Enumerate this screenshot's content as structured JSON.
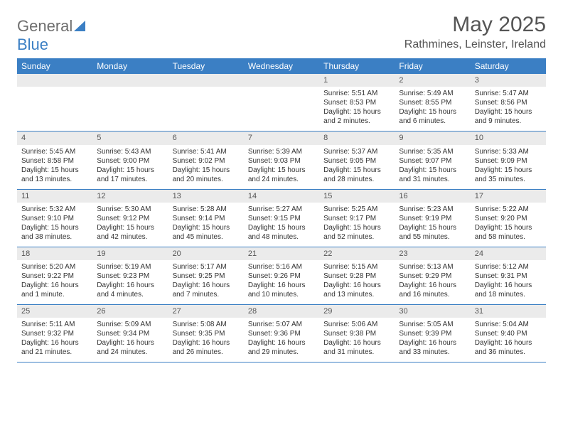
{
  "logo": {
    "part1": "General",
    "part2": "Blue"
  },
  "header": {
    "month": "May 2025",
    "location": "Rathmines, Leinster, Ireland"
  },
  "colors": {
    "header_bg": "#3b7fc4",
    "header_text": "#ffffff",
    "daynum_bg": "#ebebeb",
    "text": "#333333",
    "title": "#555555"
  },
  "weekdays": [
    "Sunday",
    "Monday",
    "Tuesday",
    "Wednesday",
    "Thursday",
    "Friday",
    "Saturday"
  ],
  "weeks": [
    [
      {
        "day": "",
        "sun": ""
      },
      {
        "day": "",
        "sun": ""
      },
      {
        "day": "",
        "sun": ""
      },
      {
        "day": "",
        "sun": ""
      },
      {
        "day": "1",
        "sunrise": "5:51 AM",
        "sunset": "8:53 PM",
        "daylight": "15 hours and 2 minutes."
      },
      {
        "day": "2",
        "sunrise": "5:49 AM",
        "sunset": "8:55 PM",
        "daylight": "15 hours and 6 minutes."
      },
      {
        "day": "3",
        "sunrise": "5:47 AM",
        "sunset": "8:56 PM",
        "daylight": "15 hours and 9 minutes."
      }
    ],
    [
      {
        "day": "4",
        "sunrise": "5:45 AM",
        "sunset": "8:58 PM",
        "daylight": "15 hours and 13 minutes."
      },
      {
        "day": "5",
        "sunrise": "5:43 AM",
        "sunset": "9:00 PM",
        "daylight": "15 hours and 17 minutes."
      },
      {
        "day": "6",
        "sunrise": "5:41 AM",
        "sunset": "9:02 PM",
        "daylight": "15 hours and 20 minutes."
      },
      {
        "day": "7",
        "sunrise": "5:39 AM",
        "sunset": "9:03 PM",
        "daylight": "15 hours and 24 minutes."
      },
      {
        "day": "8",
        "sunrise": "5:37 AM",
        "sunset": "9:05 PM",
        "daylight": "15 hours and 28 minutes."
      },
      {
        "day": "9",
        "sunrise": "5:35 AM",
        "sunset": "9:07 PM",
        "daylight": "15 hours and 31 minutes."
      },
      {
        "day": "10",
        "sunrise": "5:33 AM",
        "sunset": "9:09 PM",
        "daylight": "15 hours and 35 minutes."
      }
    ],
    [
      {
        "day": "11",
        "sunrise": "5:32 AM",
        "sunset": "9:10 PM",
        "daylight": "15 hours and 38 minutes."
      },
      {
        "day": "12",
        "sunrise": "5:30 AM",
        "sunset": "9:12 PM",
        "daylight": "15 hours and 42 minutes."
      },
      {
        "day": "13",
        "sunrise": "5:28 AM",
        "sunset": "9:14 PM",
        "daylight": "15 hours and 45 minutes."
      },
      {
        "day": "14",
        "sunrise": "5:27 AM",
        "sunset": "9:15 PM",
        "daylight": "15 hours and 48 minutes."
      },
      {
        "day": "15",
        "sunrise": "5:25 AM",
        "sunset": "9:17 PM",
        "daylight": "15 hours and 52 minutes."
      },
      {
        "day": "16",
        "sunrise": "5:23 AM",
        "sunset": "9:19 PM",
        "daylight": "15 hours and 55 minutes."
      },
      {
        "day": "17",
        "sunrise": "5:22 AM",
        "sunset": "9:20 PM",
        "daylight": "15 hours and 58 minutes."
      }
    ],
    [
      {
        "day": "18",
        "sunrise": "5:20 AM",
        "sunset": "9:22 PM",
        "daylight": "16 hours and 1 minute."
      },
      {
        "day": "19",
        "sunrise": "5:19 AM",
        "sunset": "9:23 PM",
        "daylight": "16 hours and 4 minutes."
      },
      {
        "day": "20",
        "sunrise": "5:17 AM",
        "sunset": "9:25 PM",
        "daylight": "16 hours and 7 minutes."
      },
      {
        "day": "21",
        "sunrise": "5:16 AM",
        "sunset": "9:26 PM",
        "daylight": "16 hours and 10 minutes."
      },
      {
        "day": "22",
        "sunrise": "5:15 AM",
        "sunset": "9:28 PM",
        "daylight": "16 hours and 13 minutes."
      },
      {
        "day": "23",
        "sunrise": "5:13 AM",
        "sunset": "9:29 PM",
        "daylight": "16 hours and 16 minutes."
      },
      {
        "day": "24",
        "sunrise": "5:12 AM",
        "sunset": "9:31 PM",
        "daylight": "16 hours and 18 minutes."
      }
    ],
    [
      {
        "day": "25",
        "sunrise": "5:11 AM",
        "sunset": "9:32 PM",
        "daylight": "16 hours and 21 minutes."
      },
      {
        "day": "26",
        "sunrise": "5:09 AM",
        "sunset": "9:34 PM",
        "daylight": "16 hours and 24 minutes."
      },
      {
        "day": "27",
        "sunrise": "5:08 AM",
        "sunset": "9:35 PM",
        "daylight": "16 hours and 26 minutes."
      },
      {
        "day": "28",
        "sunrise": "5:07 AM",
        "sunset": "9:36 PM",
        "daylight": "16 hours and 29 minutes."
      },
      {
        "day": "29",
        "sunrise": "5:06 AM",
        "sunset": "9:38 PM",
        "daylight": "16 hours and 31 minutes."
      },
      {
        "day": "30",
        "sunrise": "5:05 AM",
        "sunset": "9:39 PM",
        "daylight": "16 hours and 33 minutes."
      },
      {
        "day": "31",
        "sunrise": "5:04 AM",
        "sunset": "9:40 PM",
        "daylight": "16 hours and 36 minutes."
      }
    ]
  ]
}
